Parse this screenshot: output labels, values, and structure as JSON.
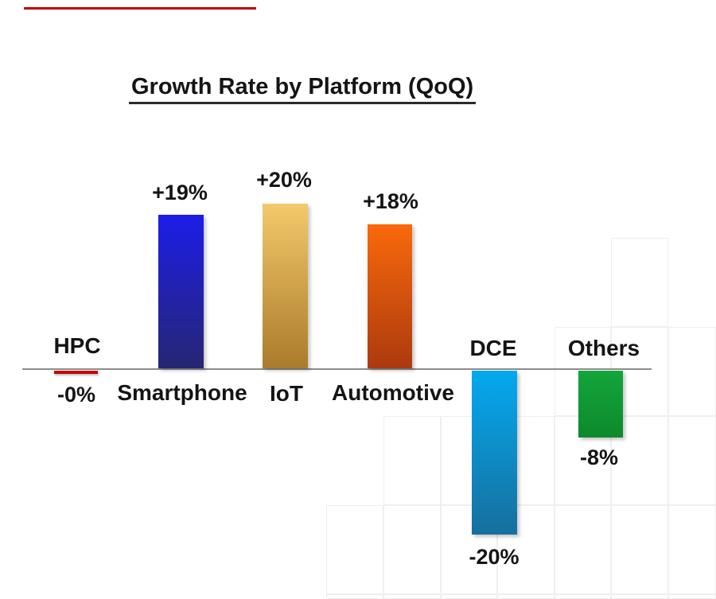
{
  "page": {
    "background": "#ffffff"
  },
  "accent_line": {
    "color": "#c00000"
  },
  "title": {
    "text": "Growth Rate by Platform (QoQ)"
  },
  "axis": {
    "color": "#8c8c8c"
  },
  "chart_data": {
    "type": "bar",
    "title": "Growth Rate by Platform (QoQ)",
    "categories": [
      "HPC",
      "Smartphone",
      "IoT",
      "Automotive",
      "DCE",
      "Others"
    ],
    "values": [
      0,
      19,
      20,
      18,
      -20,
      -8
    ],
    "value_labels": [
      "-0%",
      "+19%",
      "+20%",
      "+18%",
      "-20%",
      "-8%"
    ],
    "unit": "%",
    "ylim": [
      -22,
      22
    ],
    "baseline": 0,
    "grid": false,
    "legend_position": "none",
    "orientation": "vertical",
    "bar_colors_top": [
      "#d40505",
      "#1d1de8",
      "#f3c96b",
      "#f9690c",
      "#04a9ee",
      "#13a53a"
    ],
    "bar_colors_bottom": [
      "#b80404",
      "#262673",
      "#ab7b2b",
      "#ac3a0f",
      "#176f9e",
      "#0d8a2c"
    ]
  },
  "bars": [
    {
      "label": "HPC",
      "value_label": "-0%",
      "value": 0,
      "gradient": {
        "from": "#d40505",
        "to": "#b80404"
      }
    },
    {
      "label": "Smartphone",
      "value_label": "+19%",
      "value": 19,
      "gradient": {
        "from": "#1d1de8",
        "to": "#262673"
      }
    },
    {
      "label": "IoT",
      "value_label": "+20%",
      "value": 20,
      "gradient": {
        "from": "#f3c96b",
        "to": "#ab7b2b"
      }
    },
    {
      "label": "Automotive",
      "value_label": "+18%",
      "value": 18,
      "gradient": {
        "from": "#f9690c",
        "to": "#ac3a0f"
      }
    },
    {
      "label": "DCE",
      "value_label": "-20%",
      "value": -20,
      "gradient": {
        "from": "#04a9ee",
        "to": "#176f9e"
      }
    },
    {
      "label": "Others",
      "value_label": "-8%",
      "value": -8,
      "gradient": {
        "from": "#13a53a",
        "to": "#0d8a2c"
      }
    }
  ]
}
